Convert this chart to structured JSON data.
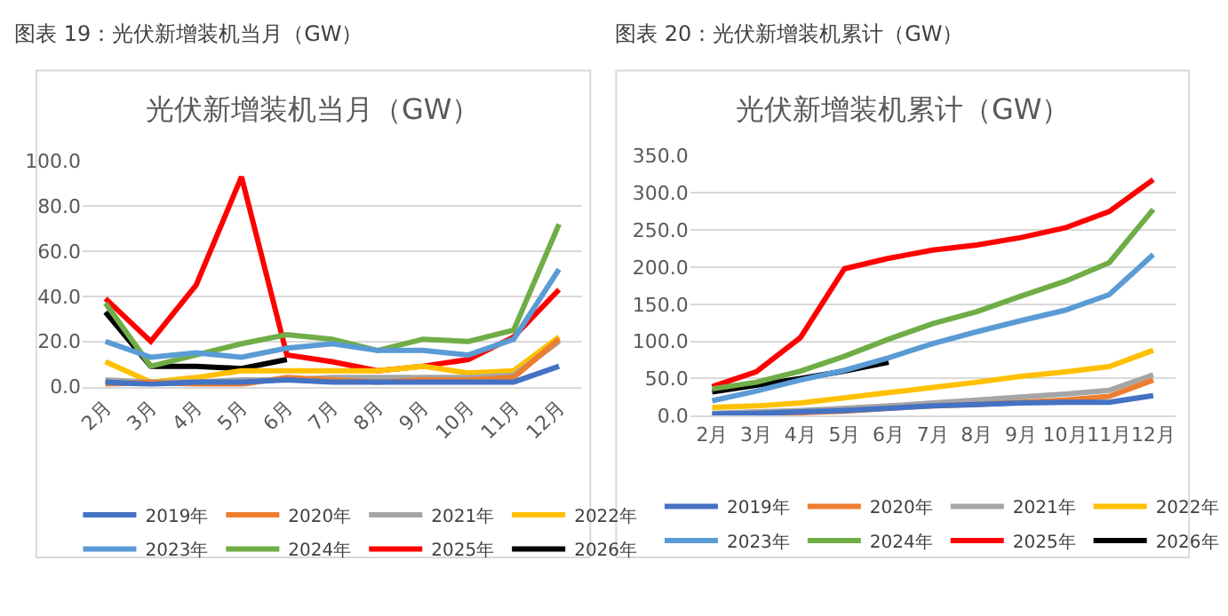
{
  "chart_data": [
    {
      "type": "line",
      "title": "图表 19：光伏新增装机当月（GW）",
      "subtitle": "光伏新增装机当月（GW）",
      "categories": [
        "2月",
        "3月",
        "4月",
        "5月",
        "6月",
        "7月",
        "8月",
        "9月",
        "10月",
        "11月",
        "12月"
      ],
      "series": [
        {
          "name": "2019年",
          "color": "#4472c4",
          "values": [
            2,
            1,
            2,
            2,
            3,
            2,
            2,
            2,
            2,
            2,
            9
          ]
        },
        {
          "name": "2020年",
          "color": "#ed7d31",
          "values": [
            1,
            2,
            1,
            1,
            4,
            3,
            2,
            3,
            3,
            4,
            21
          ]
        },
        {
          "name": "2021年",
          "color": "#a5a5a5",
          "values": [
            3,
            2,
            2,
            3,
            3,
            4,
            4,
            4,
            4,
            5,
            20
          ]
        },
        {
          "name": "2022年",
          "color": "#ffc000",
          "values": [
            11,
            2,
            4,
            7,
            7,
            7,
            7,
            9,
            6,
            7,
            22
          ]
        },
        {
          "name": "2023年",
          "color": "#5b9bd5",
          "values": [
            20,
            13,
            15,
            13,
            17,
            19,
            16,
            16,
            14,
            21,
            52
          ]
        },
        {
          "name": "2024年",
          "color": "#70ad47",
          "values": [
            37,
            9,
            14,
            19,
            23,
            21,
            16,
            21,
            20,
            25,
            72
          ]
        },
        {
          "name": "2025年",
          "color": "#ff0000",
          "values": [
            39,
            20,
            45,
            93,
            14,
            11,
            7,
            9,
            12,
            22,
            43
          ]
        },
        {
          "name": "2026年",
          "color": "#000000",
          "values": [
            33,
            9,
            9,
            8,
            12,
            null,
            null,
            null,
            null,
            null,
            null
          ]
        }
      ],
      "ylim": [
        0,
        100
      ],
      "yticks": [
        {
          "value": 0,
          "label": "0.0"
        },
        {
          "value": 20,
          "label": "20.0"
        },
        {
          "value": 40,
          "label": "40.0"
        },
        {
          "value": 60,
          "label": "60.0"
        },
        {
          "value": 80,
          "label": "80.0"
        },
        {
          "value": 100,
          "label": "100.0"
        }
      ],
      "grid": "y",
      "legend": "bottom"
    },
    {
      "type": "line",
      "title": "图表 20：光伏新增装机累计（GW）",
      "subtitle": "光伏新增装机累计（GW）",
      "categories": [
        "2月",
        "3月",
        "4月",
        "5月",
        "6月",
        "7月",
        "8月",
        "9月",
        "10月",
        "11月",
        "12月"
      ],
      "series": [
        {
          "name": "2019年",
          "color": "#4472c4",
          "values": [
            2,
            3,
            5,
            7,
            10,
            13,
            15,
            17,
            18,
            18,
            27
          ]
        },
        {
          "name": "2020年",
          "color": "#ed7d31",
          "values": [
            1,
            3,
            4,
            6,
            10,
            13,
            15,
            18,
            21,
            26,
            48
          ]
        },
        {
          "name": "2021年",
          "color": "#a5a5a5",
          "values": [
            3,
            5,
            7,
            10,
            13,
            17,
            21,
            25,
            29,
            34,
            55
          ]
        },
        {
          "name": "2022年",
          "color": "#ffc000",
          "values": [
            11,
            13,
            17,
            24,
            31,
            38,
            45,
            53,
            59,
            66,
            88
          ]
        },
        {
          "name": "2023年",
          "color": "#5b9bd5",
          "values": [
            20,
            33,
            48,
            61,
            78,
            97,
            113,
            128,
            142,
            163,
            217
          ]
        },
        {
          "name": "2024年",
          "color": "#70ad47",
          "values": [
            36,
            45,
            60,
            80,
            103,
            124,
            140,
            161,
            181,
            206,
            278
          ]
        },
        {
          "name": "2025年",
          "color": "#ff0000",
          "values": [
            39,
            59,
            105,
            198,
            212,
            223,
            230,
            240,
            253,
            275,
            318
          ]
        },
        {
          "name": "2026年",
          "color": "#000000",
          "values": [
            32,
            41,
            50,
            60,
            72,
            null,
            null,
            null,
            null,
            null,
            null
          ]
        }
      ],
      "ylim": [
        0,
        350
      ],
      "yticks": [
        {
          "value": 0,
          "label": "0.0"
        },
        {
          "value": 50,
          "label": "50.0"
        },
        {
          "value": 100,
          "label": "100.0"
        },
        {
          "value": 150,
          "label": "150.0"
        },
        {
          "value": 200,
          "label": "200.0"
        },
        {
          "value": 250,
          "label": "250.0"
        },
        {
          "value": 300,
          "label": "300.0"
        },
        {
          "value": 350,
          "label": "350.0"
        }
      ],
      "grid": "y",
      "legend": "bottom"
    }
  ]
}
